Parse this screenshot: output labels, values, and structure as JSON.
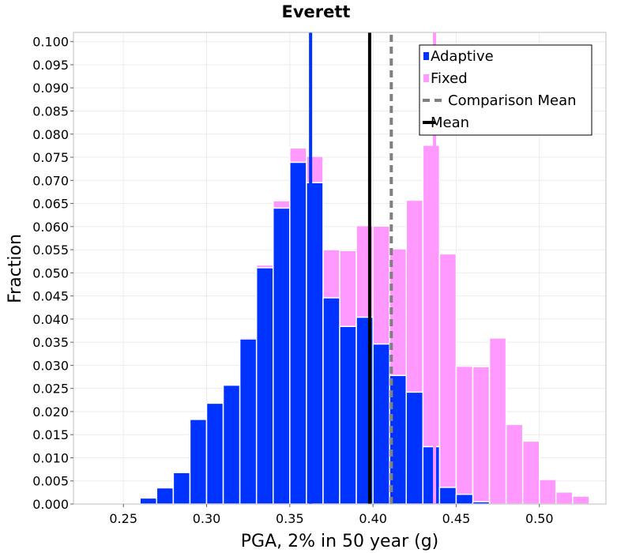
{
  "chart_data": {
    "type": "bar",
    "title": "Everett",
    "xlabel": "PGA, 2% in 50 year (g)",
    "ylabel": "Fraction",
    "xlim": [
      0.22,
      0.54
    ],
    "ylim": [
      0,
      0.102
    ],
    "x_ticks": [
      "0.25",
      "0.30",
      "0.35",
      "0.40",
      "0.45",
      "0.50"
    ],
    "y_ticks": [
      "0.000",
      "0.005",
      "0.010",
      "0.015",
      "0.020",
      "0.025",
      "0.030",
      "0.035",
      "0.040",
      "0.045",
      "0.050",
      "0.055",
      "0.060",
      "0.065",
      "0.070",
      "0.075",
      "0.080",
      "0.085",
      "0.090",
      "0.095",
      "0.100"
    ],
    "grid": true,
    "legend_position": "top-right",
    "bin_width": 0.01,
    "bin_starts": [
      0.22,
      0.23,
      0.24,
      0.25,
      0.26,
      0.27,
      0.28,
      0.29,
      0.3,
      0.31,
      0.32,
      0.33,
      0.34,
      0.35,
      0.36,
      0.37,
      0.38,
      0.39,
      0.4,
      0.41,
      0.42,
      0.43,
      0.44,
      0.45,
      0.46,
      0.47,
      0.48,
      0.49,
      0.5,
      0.51,
      0.52,
      0.53
    ],
    "series": [
      {
        "name": "Fixed",
        "color": "#ff99ff",
        "values": [
          0.0,
          0.0,
          0.0,
          0.0002,
          0.0013,
          0.0035,
          0.0068,
          0.0183,
          0.0218,
          0.0257,
          0.036,
          0.0517,
          0.0656,
          0.077,
          0.0752,
          0.055,
          0.0548,
          0.0602,
          0.0601,
          0.0552,
          0.0657,
          0.0776,
          0.0541,
          0.0298,
          0.0297,
          0.0359,
          0.0172,
          0.0136,
          0.0053,
          0.0026,
          0.0017,
          0.0002
        ]
      },
      {
        "name": "Adaptive",
        "color": "#0033ff",
        "values": [
          0.0,
          0.0,
          0.0,
          0.0002,
          0.0013,
          0.0035,
          0.0068,
          0.0183,
          0.0218,
          0.0257,
          0.0357,
          0.0511,
          0.064,
          0.0739,
          0.0695,
          0.0446,
          0.0384,
          0.0404,
          0.0346,
          0.0278,
          0.0242,
          0.0124,
          0.0036,
          0.0021,
          0.0005,
          0.0,
          0.0,
          0.0,
          0.0,
          0.0,
          0.0,
          0.0
        ]
      }
    ],
    "lines": [
      {
        "name": "Mean",
        "x": 0.398,
        "color": "#000000",
        "style": "solid"
      },
      {
        "name": "Comparison Mean",
        "x": 0.411,
        "color": "#808080",
        "style": "dashed"
      },
      {
        "name": "Adaptive mean",
        "x": 0.3625,
        "color": "#0033ff",
        "style": "solid"
      },
      {
        "name": "Fixed mean",
        "x": 0.437,
        "color": "#ff99ff",
        "style": "solid"
      }
    ],
    "legend": [
      {
        "label": "Adaptive",
        "kind": "box",
        "color": "#0033ff"
      },
      {
        "label": "Fixed",
        "kind": "box",
        "color": "#ff99ff"
      },
      {
        "label": "Comparison Mean",
        "kind": "dash",
        "color": "#808080"
      },
      {
        "label": "Mean",
        "kind": "line",
        "color": "#000000"
      }
    ]
  }
}
